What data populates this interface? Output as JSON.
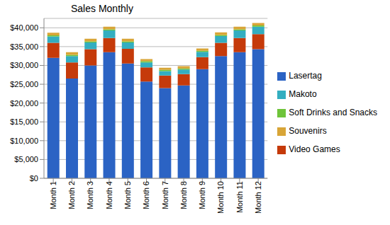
{
  "chart_data": {
    "type": "bar",
    "title": "Sales Monthly",
    "categories": [
      "Month 1",
      "Month 2",
      "Month 3",
      "Month 4",
      "Month 5",
      "Month 6",
      "Month 7",
      "Month 8",
      "Month 9",
      "Month 10",
      "Month 11",
      "Month 12"
    ],
    "series": [
      {
        "name": "Lasertag",
        "color": "#2b63c4",
        "values": [
          32000,
          26500,
          30000,
          33500,
          30500,
          25700,
          24000,
          24700,
          29000,
          32500,
          33500,
          34300
        ]
      },
      {
        "name": "Video Games",
        "color": "#c53a0a",
        "values": [
          4000,
          4300,
          4300,
          3800,
          3900,
          3800,
          3300,
          3000,
          3200,
          3500,
          3800,
          4000
        ]
      },
      {
        "name": "Makoto",
        "color": "#33aec0",
        "values": [
          1700,
          1700,
          1800,
          2000,
          1700,
          1300,
          1200,
          1200,
          1400,
          1800,
          2000,
          2000
        ]
      },
      {
        "name": "Soft Drinks and Snacks",
        "color": "#6fc43a",
        "values": [
          300,
          300,
          300,
          300,
          300,
          300,
          300,
          300,
          300,
          300,
          300,
          300
        ]
      },
      {
        "name": "Souvenirs",
        "color": "#d8a537",
        "values": [
          700,
          700,
          700,
          700,
          700,
          600,
          600,
          600,
          600,
          700,
          700,
          700
        ]
      }
    ],
    "ylim": [
      0,
      42500
    ],
    "yticks": [
      {
        "value": 0,
        "label": "$0"
      },
      {
        "value": 5000,
        "label": "$5,000"
      },
      {
        "value": 10000,
        "label": "$10,000"
      },
      {
        "value": 15000,
        "label": "$15,000"
      },
      {
        "value": 20000,
        "label": "$20,000"
      },
      {
        "value": 25000,
        "label": "$25,000"
      },
      {
        "value": 30000,
        "label": "$30,000"
      },
      {
        "value": 35000,
        "label": "$35,000"
      },
      {
        "value": 40000,
        "label": "$40,000"
      }
    ],
    "stacked": true,
    "grid": true,
    "legend": "right"
  }
}
